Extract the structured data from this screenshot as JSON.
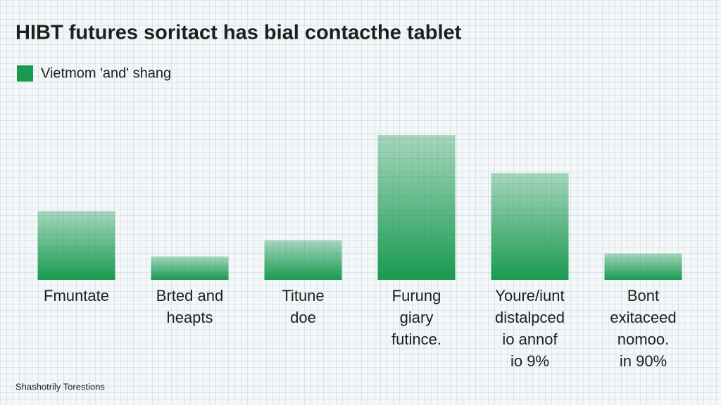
{
  "chart_data": {
    "type": "bar",
    "title": "HIBT futures soritact has bial contacthe tablet",
    "categories": [
      [
        "Fmuntate"
      ],
      [
        "Brted and",
        "heapts"
      ],
      [
        "Titune",
        "doe"
      ],
      [
        "Furung",
        "giary",
        "futince."
      ],
      [
        "Youre/iunt",
        "distalpced",
        "io annof",
        "io 9%"
      ],
      [
        "Bont",
        "exitaceed",
        "nomoo.",
        "in 90%"
      ]
    ],
    "series": [
      {
        "name": "Vietmom 'and' shang",
        "color": "#1a9a50",
        "values": [
          47,
          16,
          27,
          99,
          73,
          18
        ]
      }
    ],
    "ylim": [
      0,
      100
    ],
    "note": "Shashotrily Torestions"
  }
}
